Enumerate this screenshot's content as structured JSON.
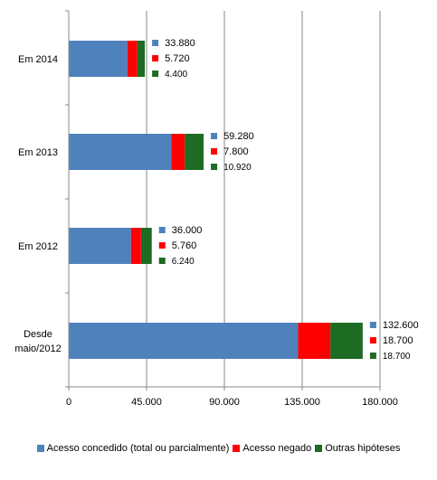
{
  "chart_data": {
    "type": "bar",
    "orientation": "horizontal",
    "stacked": true,
    "categories": [
      "Em 2014",
      "Em 2013",
      "Em 2012",
      "Desde maio/2012"
    ],
    "category_lines": [
      [
        "Em 2014"
      ],
      [
        "Em 2013"
      ],
      [
        "Em 2012"
      ],
      [
        "Desde",
        "maio/2012"
      ]
    ],
    "series": [
      {
        "name": "Acesso concedido (total ou parcialmente)",
        "values": [
          33880,
          59280,
          36000,
          132600
        ],
        "color": "#4F81BD"
      },
      {
        "name": "Acesso negado",
        "values": [
          5720,
          7800,
          5760,
          18700
        ],
        "color": "#FF0000"
      },
      {
        "name": "Outras hipóteses",
        "values": [
          4400,
          10920,
          6240,
          18700
        ],
        "color": "#1E6B24"
      }
    ],
    "value_labels": [
      [
        "33.880",
        "5.720",
        "4.400"
      ],
      [
        "59.280",
        "7.800",
        "10.920"
      ],
      [
        "36.000",
        "5.760",
        "6.240"
      ],
      [
        "132.600",
        "18.700",
        "18.700"
      ]
    ],
    "xlim": [
      0,
      180000
    ],
    "xticks": [
      0,
      45000,
      90000,
      135000,
      180000
    ],
    "xtick_labels": [
      "0",
      "45.000",
      "90.000",
      "135.000",
      "180.000"
    ],
    "title": "",
    "xlabel": "",
    "ylabel": "",
    "grid": "vertical",
    "legend_position": "bottom"
  }
}
